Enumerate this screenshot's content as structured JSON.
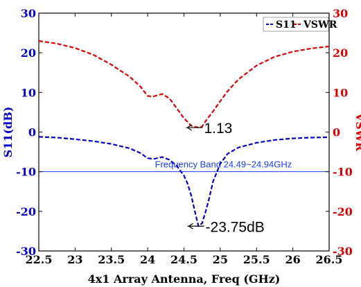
{
  "chart_data": {
    "type": "line",
    "xlabel": "4x1 Array Antenna, Freq (GHz)",
    "ylabel_left": "S11(dB)",
    "ylabel_right": "VSWR",
    "xlim": [
      22.5,
      26.5
    ],
    "ylim_left": [
      -30,
      30
    ],
    "ylim_right": [
      -30,
      30
    ],
    "x_ticks": [
      "22.5",
      "23",
      "23.5",
      "24",
      "24.5",
      "25",
      "25.5",
      "26",
      "26.5"
    ],
    "y_ticks_left": [
      "30",
      "20",
      "10",
      "0",
      "-10",
      "-20",
      "-30"
    ],
    "y_ticks_right": [
      "30",
      "20",
      "10",
      "0",
      "-10",
      "-20",
      "-30"
    ],
    "grid": false,
    "legend_position": "top-right",
    "series": [
      {
        "name": "S11",
        "axis": "left",
        "color": "#0000cc",
        "style": "dashed",
        "x": [
          22.5,
          22.75,
          23.0,
          23.25,
          23.5,
          23.75,
          23.9,
          24.0,
          24.08,
          24.2,
          24.3,
          24.4,
          24.5,
          24.55,
          24.6,
          24.65,
          24.7,
          24.75,
          24.8,
          24.85,
          24.9,
          25.0,
          25.1,
          25.25,
          25.5,
          25.75,
          26.0,
          26.25,
          26.5
        ],
        "y": [
          -1.2,
          -1.4,
          -1.8,
          -2.3,
          -3.0,
          -4.1,
          -5.3,
          -6.6,
          -6.8,
          -6.3,
          -7.0,
          -8.5,
          -11.0,
          -13.0,
          -16.0,
          -20.0,
          -23.75,
          -23.0,
          -20.0,
          -16.5,
          -12.5,
          -8.0,
          -5.5,
          -3.9,
          -2.7,
          -2.0,
          -1.6,
          -1.4,
          -1.3
        ]
      },
      {
        "name": "VSWR",
        "axis": "right",
        "color": "#dd0000",
        "style": "dashed",
        "x": [
          22.5,
          22.75,
          23.0,
          23.25,
          23.5,
          23.75,
          23.9,
          24.0,
          24.08,
          24.2,
          24.3,
          24.4,
          24.5,
          24.6,
          24.7,
          24.75,
          24.8,
          24.9,
          25.0,
          25.1,
          25.25,
          25.5,
          25.75,
          26.0,
          26.25,
          26.5
        ],
        "y": [
          23.0,
          22.3,
          21.2,
          19.5,
          17.0,
          14.0,
          11.5,
          9.1,
          9.0,
          9.6,
          8.5,
          6.0,
          3.5,
          1.6,
          1.13,
          1.4,
          2.8,
          5.2,
          7.8,
          10.3,
          13.3,
          16.8,
          19.0,
          20.3,
          21.1,
          21.6
        ]
      }
    ],
    "reference_line": {
      "y": -10,
      "axis": "left",
      "color": "#1a3cff",
      "label": "Frequency Band 24.49~24.94GHz"
    },
    "annotations": [
      {
        "x": 24.7,
        "y": 1.13,
        "axis": "right",
        "text": "1.13"
      },
      {
        "x": 24.72,
        "y": -23.75,
        "axis": "left",
        "text": "-23.75dB"
      }
    ]
  }
}
